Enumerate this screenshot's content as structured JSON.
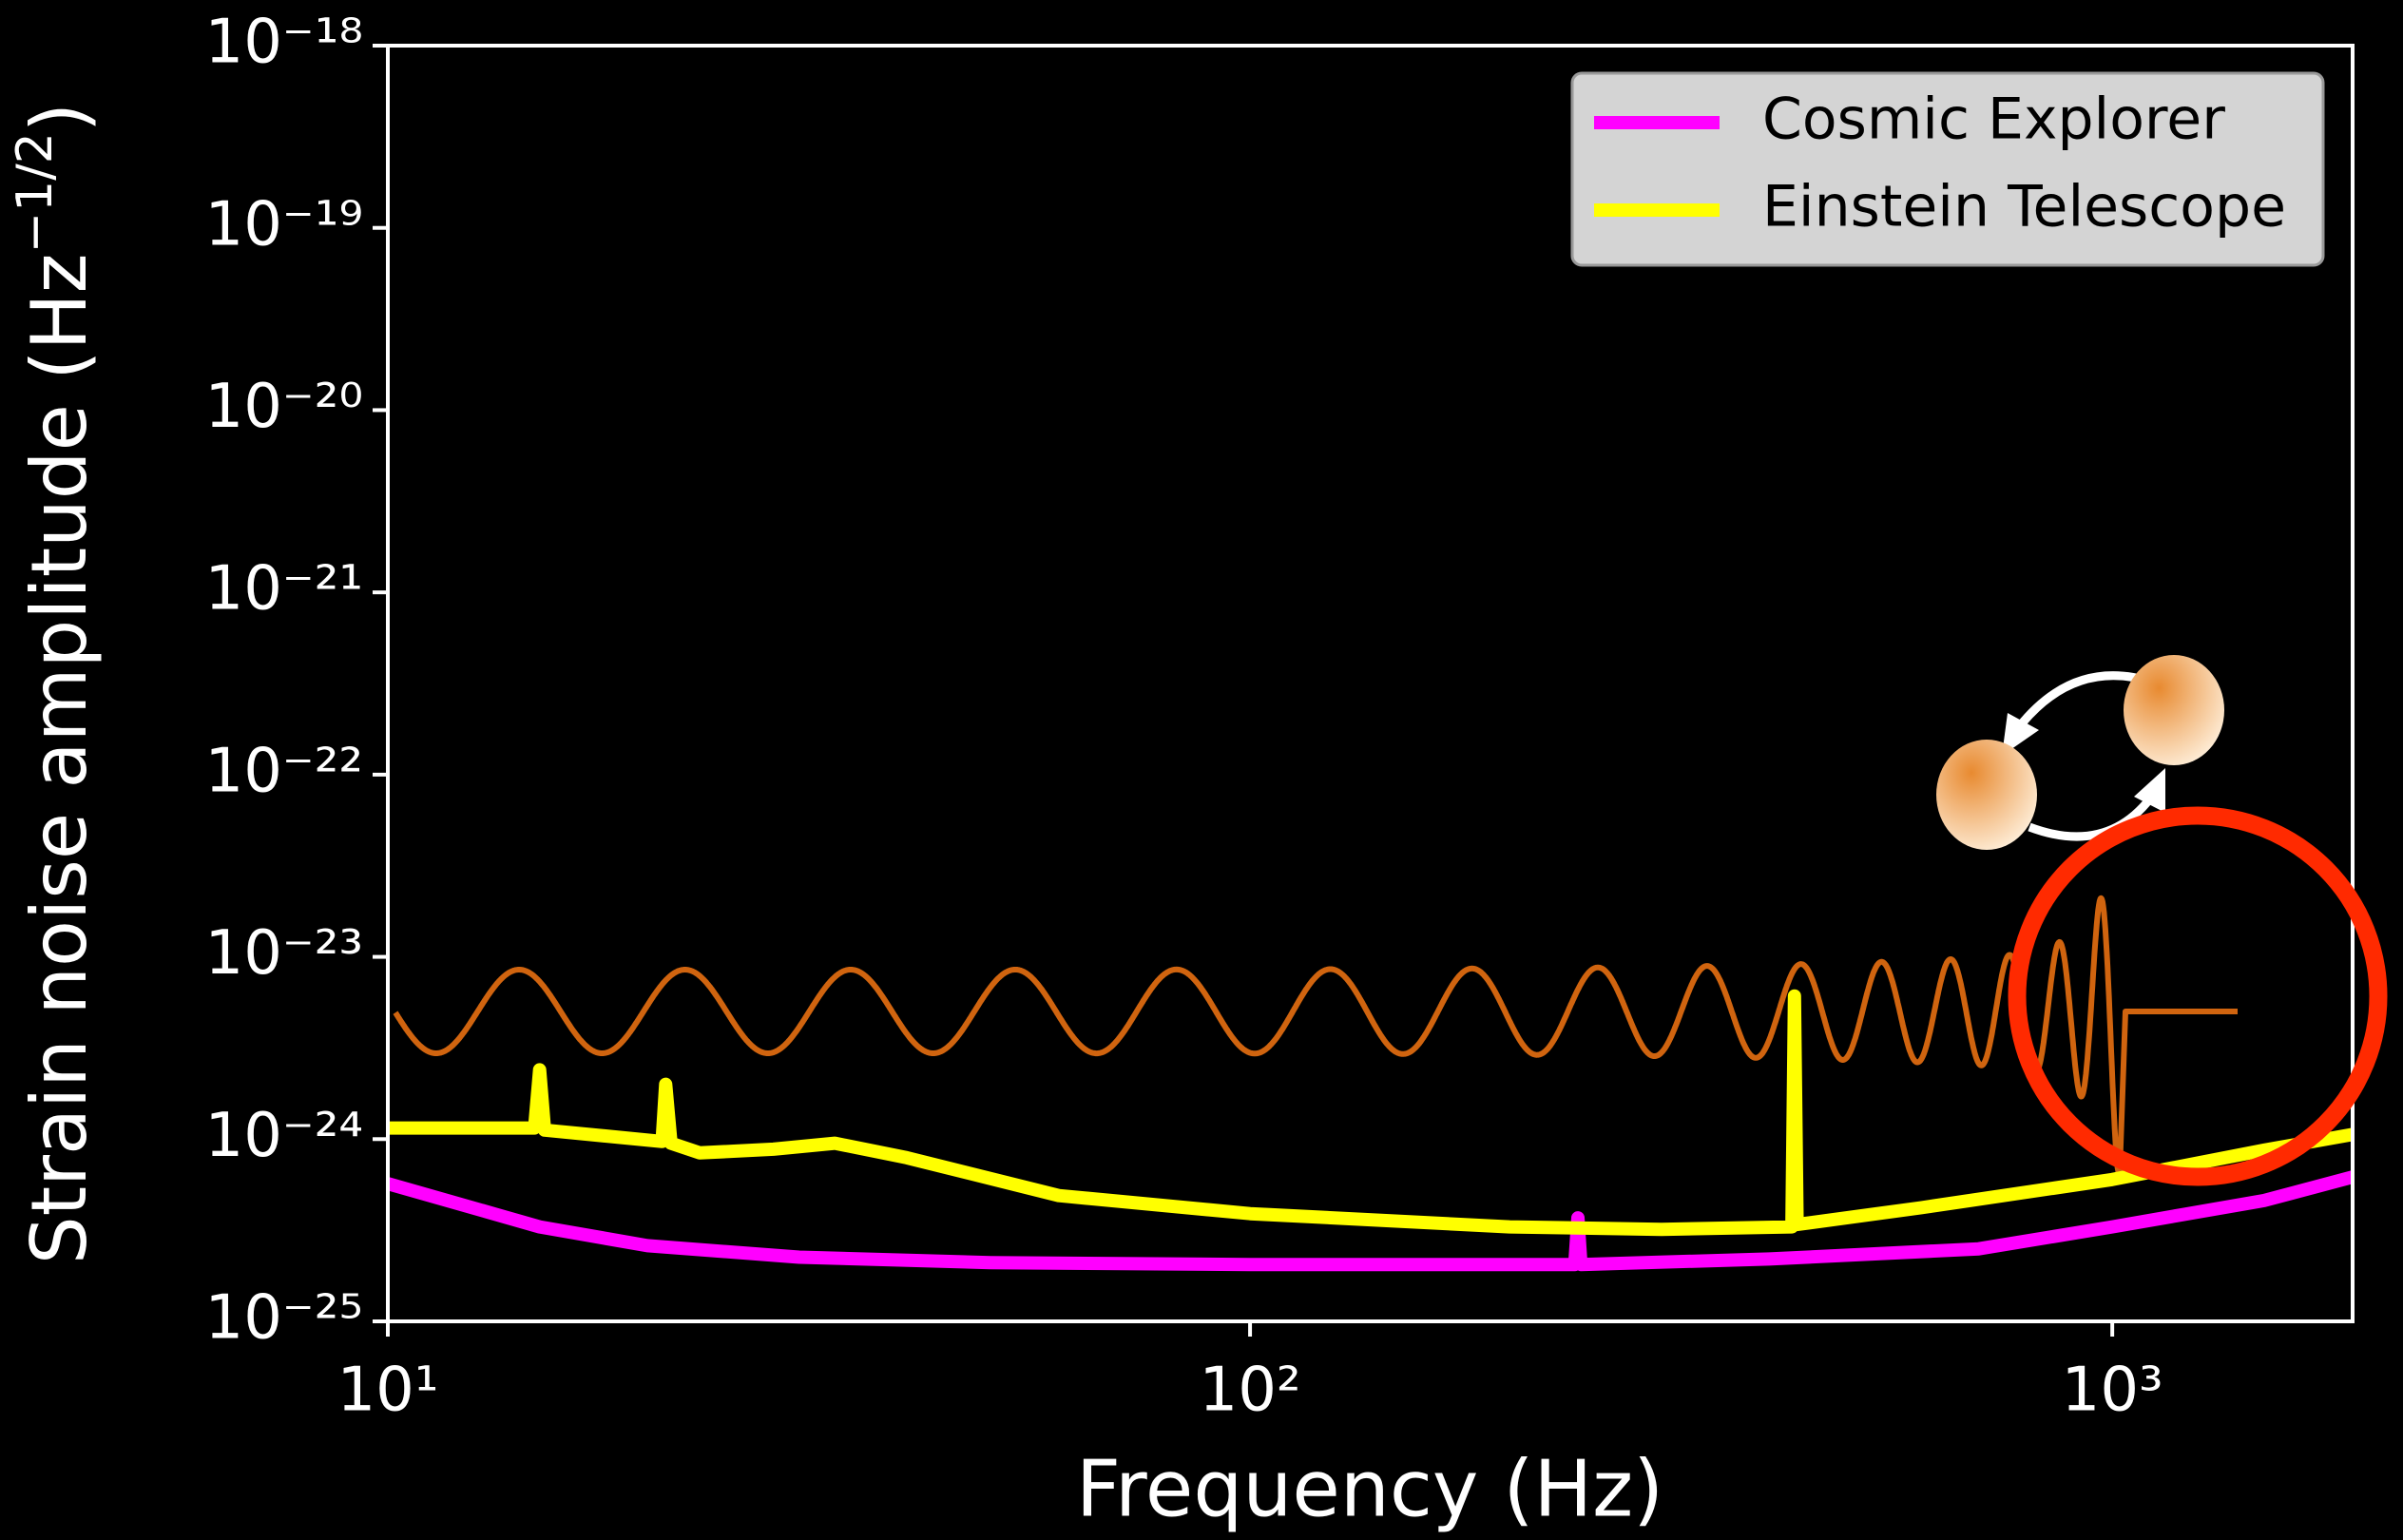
{
  "chart_data": {
    "type": "line",
    "xlabel": "Frequency (Hz)",
    "ylabel": {
      "text": "Strain noise amplitude (Hz",
      "superscript": "−1/2",
      "closing": ")"
    },
    "xscale": "log",
    "yscale": "log",
    "xlim": [
      10,
      1900
    ],
    "ylim": [
      1e-25,
      1e-18
    ],
    "xticks": [
      {
        "value": 10,
        "label": "10¹"
      },
      {
        "value": 100,
        "label": "10²"
      },
      {
        "value": 1000,
        "label": "10³"
      }
    ],
    "yticks": [
      {
        "value": 1e-25,
        "label": "10⁻²⁵"
      },
      {
        "value": 1e-24,
        "label": "10⁻²⁴"
      },
      {
        "value": 1e-23,
        "label": "10⁻²³"
      },
      {
        "value": 1e-22,
        "label": "10⁻²²"
      },
      {
        "value": 1e-21,
        "label": "10⁻²¹"
      },
      {
        "value": 1e-20,
        "label": "10⁻²⁰"
      },
      {
        "value": 1e-19,
        "label": "10⁻¹⁹"
      },
      {
        "value": 1e-18,
        "label": "10⁻¹⁸"
      }
    ],
    "grid": false,
    "legend": "upper right",
    "series": [
      {
        "name": "Cosmic Explorer",
        "color": "#ff00ff",
        "x": [
          10,
          15,
          20,
          30,
          50,
          100,
          200,
          238,
          240,
          242,
          400,
          700,
          1000,
          1500,
          1900
        ],
        "values": [
          5.7e-25,
          3.3e-25,
          2.6e-25,
          2.25e-25,
          2.1e-25,
          2.05e-25,
          2.05e-25,
          2.05e-25,
          3.7e-25,
          2.05e-25,
          2.2e-25,
          2.5e-25,
          3.3e-25,
          4.6e-25,
          6.2e-25
        ]
      },
      {
        "name": "Einstein Telescope",
        "color": "#ffff00",
        "x": [
          10,
          14.8,
          15,
          15.2,
          20.8,
          21,
          21.3,
          23,
          28,
          33,
          40,
          60,
          100,
          200,
          300,
          425,
          428,
          431,
          600,
          1000,
          1500,
          1900
        ],
        "values": [
          1.15e-24,
          1.15e-24,
          2.4e-24,
          1.12e-24,
          9.7e-25,
          2e-24,
          9.5e-25,
          8.4e-25,
          8.8e-25,
          9.5e-25,
          7.9e-25,
          4.9e-25,
          3.9e-25,
          3.3e-25,
          3.2e-25,
          3.3e-25,
          6.1e-24,
          3.4e-25,
          4.2e-25,
          6e-25,
          8.7e-25,
          1.06e-24
        ]
      }
    ]
  }
}
